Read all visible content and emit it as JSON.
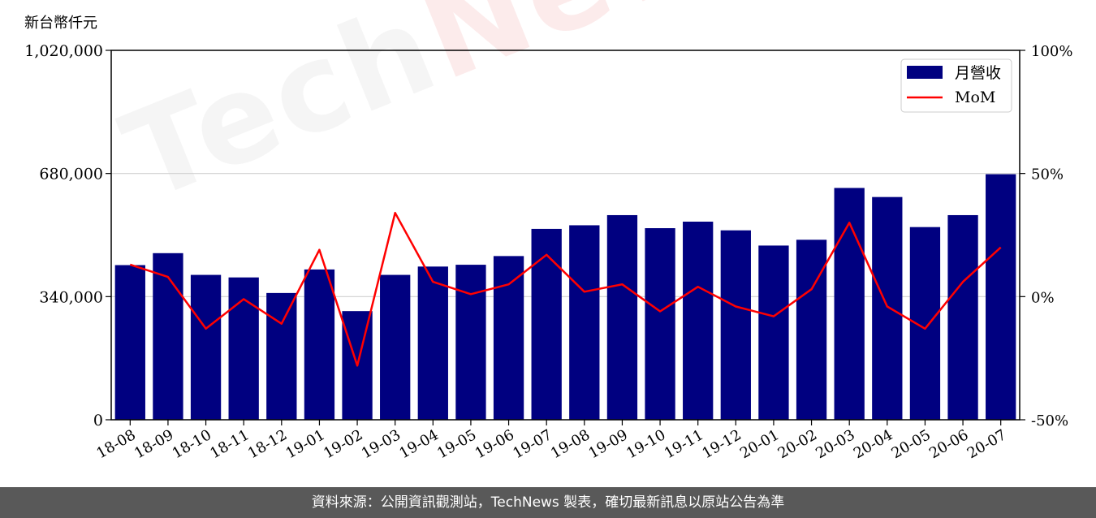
{
  "unit_label": "新台幣仟元",
  "footer_text": "資料來源：公開資訊觀測站，TechNews 製表，確切最新訊息以原站公告為準",
  "watermark": {
    "part1": "Tech",
    "part2": "News"
  },
  "colors": {
    "bar": "#000080",
    "line": "#ff0000",
    "grid": "#d0d0d0"
  },
  "chart_data": {
    "type": "bar",
    "categories": [
      "18-08",
      "18-09",
      "18-10",
      "18-11",
      "18-12",
      "19-01",
      "19-02",
      "19-03",
      "19-04",
      "19-05",
      "19-06",
      "19-07",
      "19-08",
      "19-09",
      "19-10",
      "19-11",
      "19-12",
      "20-01",
      "20-02",
      "20-03",
      "20-04",
      "20-05",
      "20-06",
      "20-07"
    ],
    "series": [
      {
        "name": "月營收",
        "type": "bar",
        "axis": "left",
        "values": [
          427000,
          460000,
          400000,
          393000,
          350000,
          415000,
          300000,
          400000,
          423000,
          428000,
          452000,
          527000,
          537000,
          565000,
          529000,
          547000,
          523000,
          481000,
          497000,
          640000,
          615000,
          532000,
          565000,
          678000
        ]
      },
      {
        "name": "MoM",
        "type": "line",
        "axis": "right",
        "unit": "%",
        "values": [
          13,
          8,
          -13,
          -1,
          -11,
          19,
          -28,
          34,
          6,
          1,
          5,
          17,
          2,
          5,
          -6,
          4,
          -4,
          -8,
          3,
          30,
          -4,
          -13,
          6,
          20
        ]
      }
    ],
    "y_left": {
      "min": 0,
      "max": 1020000,
      "ticks": [
        "0",
        "340,000",
        "680,000",
        "1,020,000"
      ],
      "tick_values": [
        0,
        340000,
        680000,
        1020000
      ]
    },
    "y_right": {
      "min": -50,
      "max": 100,
      "ticks": [
        "-50%",
        "0%",
        "50%",
        "100%"
      ],
      "tick_values": [
        -50,
        0,
        50,
        100
      ]
    },
    "grid": "horizontal",
    "legend_position": "top-right"
  }
}
